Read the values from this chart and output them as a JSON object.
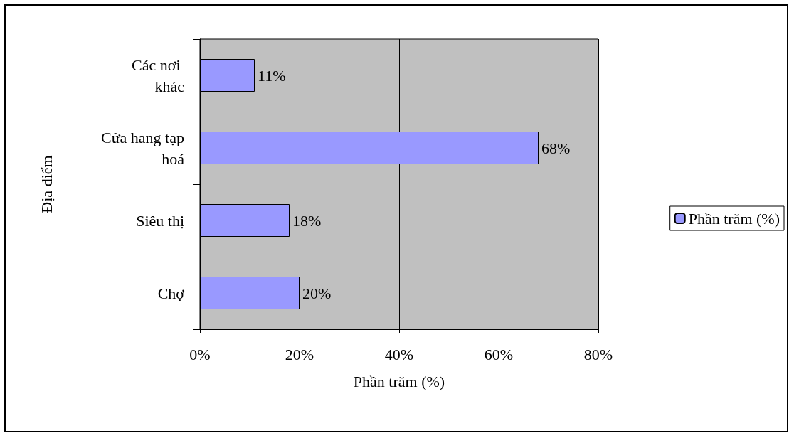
{
  "chart_data": {
    "type": "bar",
    "orientation": "horizontal",
    "categories": [
      "Các nơi khác",
      "Cửa hang tạp hoá",
      "Siêu thị",
      "Chợ"
    ],
    "series": [
      {
        "name": "Phần trăm (%)",
        "color": "#9999ff",
        "values": [
          11,
          68,
          18,
          20
        ],
        "value_labels": [
          "11%",
          "68%",
          "18%",
          "20%"
        ]
      }
    ],
    "xlabel": "Phần trăm (%)",
    "ylabel": "Địa điểm",
    "xlim": [
      0,
      80
    ],
    "xticks": [
      {
        "value": 0,
        "label": "0%"
      },
      {
        "value": 20,
        "label": "20%"
      },
      {
        "value": 40,
        "label": "40%"
      },
      {
        "value": 60,
        "label": "60%"
      },
      {
        "value": 80,
        "label": "80%"
      }
    ],
    "grid": "x",
    "legend": "right"
  }
}
